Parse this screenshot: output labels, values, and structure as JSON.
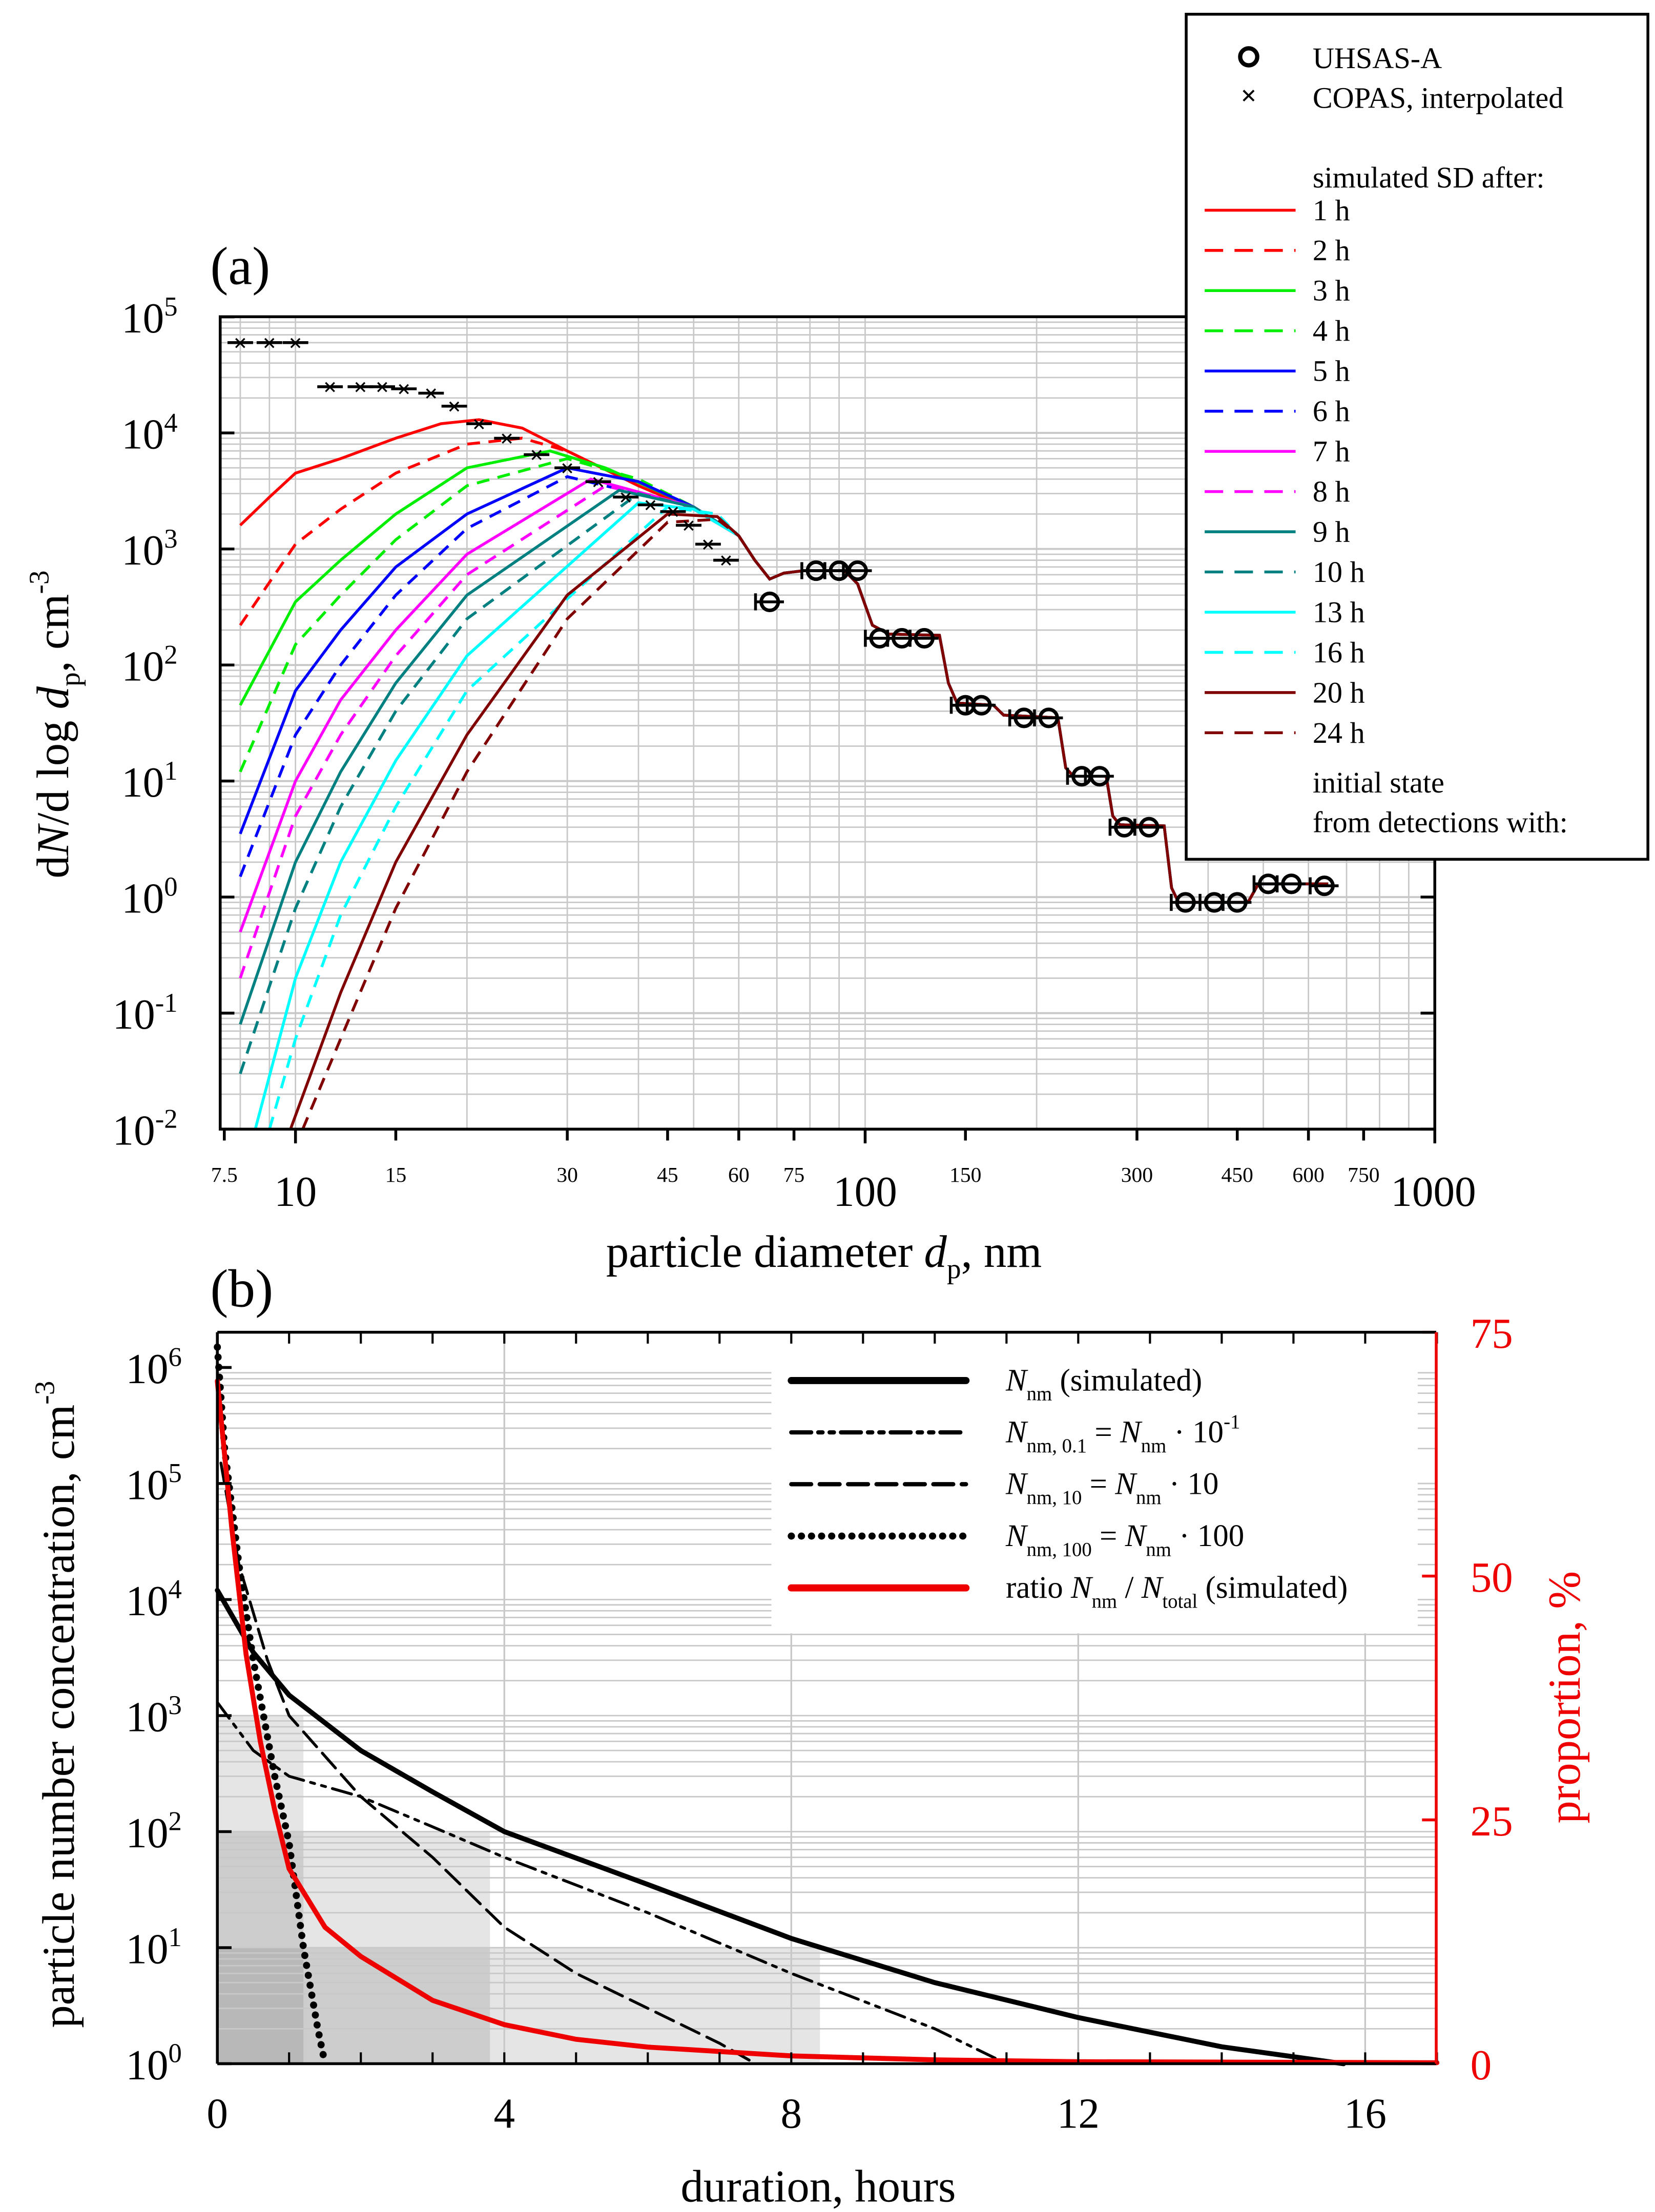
{
  "chart_data": [
    {
      "panel_label": "(a)",
      "type": "line",
      "xscale": "log",
      "yscale": "log",
      "xlim": [
        7.5,
        1000
      ],
      "ylim_exp": [
        -2,
        5
      ],
      "xlabel_pre": "particle diameter ",
      "xlabel_var": "d",
      "xlabel_sub": "p",
      "xlabel_post": ", nm",
      "ylabel": "dN/d log dp, cm-3",
      "ylabel_parts": {
        "a": "d",
        "b": "N",
        "c": "/d log ",
        "d": "d",
        "e": "p",
        "f": ", cm",
        "g": "-3"
      },
      "xticks_small": [
        "7.5",
        "15",
        "30",
        "45",
        "60",
        "75",
        "150",
        "300",
        "450",
        "600",
        "750"
      ],
      "xticks_big": [
        "10",
        "100",
        "1000"
      ],
      "yticks_exp": [
        "-2",
        "-1",
        "0",
        "1",
        "2",
        "3",
        "4",
        "5"
      ],
      "legend": {
        "uhsas": "UHSAS-A",
        "copas": "COPAS, interpolated",
        "sim_title": "simulated SD after:",
        "initial1": "initial state",
        "initial2": "from detections with:"
      },
      "series": [
        {
          "name": "1 h",
          "color": "#ff0000",
          "dash": false,
          "points": [
            [
              8,
              1600
            ],
            [
              9,
              2800
            ],
            [
              10,
              4500
            ],
            [
              12,
              6000
            ],
            [
              15,
              9000
            ],
            [
              18,
              12000
            ],
            [
              21,
              13000
            ],
            [
              25,
              11000
            ],
            [
              30,
              7000
            ],
            [
              40,
              3500
            ],
            [
              50,
              2200
            ]
          ]
        },
        {
          "name": "2 h",
          "color": "#ff0000",
          "dash": true,
          "points": [
            [
              8,
              220
            ],
            [
              10,
              1100
            ],
            [
              12,
              2200
            ],
            [
              15,
              4500
            ],
            [
              20,
              8000
            ],
            [
              25,
              9000
            ],
            [
              30,
              7000
            ],
            [
              40,
              3500
            ],
            [
              50,
              2200
            ]
          ]
        },
        {
          "name": "3 h",
          "color": "#00ee00",
          "dash": false,
          "points": [
            [
              8,
              45
            ],
            [
              10,
              350
            ],
            [
              12,
              800
            ],
            [
              15,
              2000
            ],
            [
              20,
              5000
            ],
            [
              28,
              7000
            ],
            [
              35,
              5000
            ],
            [
              50,
              2300
            ]
          ]
        },
        {
          "name": "4 h",
          "color": "#00ee00",
          "dash": true,
          "points": [
            [
              8,
              12
            ],
            [
              10,
              150
            ],
            [
              12,
              400
            ],
            [
              15,
              1200
            ],
            [
              20,
              3500
            ],
            [
              30,
              6000
            ],
            [
              40,
              4000
            ],
            [
              50,
              2300
            ]
          ]
        },
        {
          "name": "5 h",
          "color": "#0000ff",
          "dash": false,
          "points": [
            [
              8,
              3.5
            ],
            [
              10,
              60
            ],
            [
              12,
              200
            ],
            [
              15,
              700
            ],
            [
              20,
              2000
            ],
            [
              30,
              5000
            ],
            [
              40,
              3800
            ],
            [
              50,
              2300
            ]
          ]
        },
        {
          "name": "6 h",
          "color": "#0000ff",
          "dash": true,
          "points": [
            [
              8,
              1.5
            ],
            [
              10,
              25
            ],
            [
              12,
              100
            ],
            [
              15,
              400
            ],
            [
              20,
              1500
            ],
            [
              30,
              4200
            ],
            [
              50,
              2300
            ]
          ]
        },
        {
          "name": "7 h",
          "color": "#ff00ff",
          "dash": false,
          "points": [
            [
              8,
              0.5
            ],
            [
              10,
              10
            ],
            [
              12,
              50
            ],
            [
              15,
              200
            ],
            [
              20,
              900
            ],
            [
              33,
              4000
            ],
            [
              50,
              2300
            ]
          ]
        },
        {
          "name": "8 h",
          "color": "#ff00ff",
          "dash": true,
          "points": [
            [
              8,
              0.2
            ],
            [
              10,
              5
            ],
            [
              12,
              25
            ],
            [
              15,
              120
            ],
            [
              20,
              600
            ],
            [
              35,
              3500
            ],
            [
              50,
              2300
            ]
          ]
        },
        {
          "name": "9 h",
          "color": "#008080",
          "dash": false,
          "points": [
            [
              8,
              0.08
            ],
            [
              10,
              2
            ],
            [
              12,
              12
            ],
            [
              15,
              70
            ],
            [
              20,
              400
            ],
            [
              37,
              3200
            ],
            [
              50,
              2300
            ]
          ]
        },
        {
          "name": "10 h",
          "color": "#008080",
          "dash": true,
          "points": [
            [
              8,
              0.03
            ],
            [
              10,
              0.8
            ],
            [
              12,
              6
            ],
            [
              15,
              40
            ],
            [
              20,
              250
            ],
            [
              40,
              3000
            ],
            [
              50,
              2300
            ]
          ]
        },
        {
          "name": "13 h",
          "color": "#00ffff",
          "dash": false,
          "points": [
            [
              8.5,
              0.01
            ],
            [
              10,
              0.2
            ],
            [
              12,
              2
            ],
            [
              15,
              15
            ],
            [
              20,
              120
            ],
            [
              40,
              2500
            ],
            [
              50,
              2200
            ]
          ]
        },
        {
          "name": "16 h",
          "color": "#00ffff",
          "dash": true,
          "points": [
            [
              9,
              0.01
            ],
            [
              10,
              0.06
            ],
            [
              12,
              0.7
            ],
            [
              15,
              6
            ],
            [
              20,
              60
            ],
            [
              45,
              2300
            ],
            [
              55,
              2000
            ]
          ]
        },
        {
          "name": "20 h",
          "color": "#800000",
          "dash": false,
          "points": [
            [
              9.8,
              0.01
            ],
            [
              12,
              0.15
            ],
            [
              15,
              2
            ],
            [
              20,
              25
            ],
            [
              30,
              400
            ],
            [
              45,
              2000
            ],
            [
              55,
              1900
            ]
          ]
        },
        {
          "name": "24 h",
          "color": "#800000",
          "dash": true,
          "points": [
            [
              10.3,
              0.01
            ],
            [
              12,
              0.06
            ],
            [
              15,
              0.8
            ],
            [
              20,
              12
            ],
            [
              30,
              250
            ],
            [
              45,
              1700
            ],
            [
              55,
              1800
            ]
          ]
        }
      ],
      "common_tail": [
        [
          60,
          1300
        ],
        [
          64,
          800
        ],
        [
          68,
          550
        ],
        [
          72,
          620
        ],
        [
          78,
          650
        ],
        [
          92,
          650
        ],
        [
          97,
          500
        ],
        [
          103,
          220
        ],
        [
          110,
          185
        ],
        [
          135,
          180
        ],
        [
          140,
          70
        ],
        [
          145,
          47
        ],
        [
          168,
          45
        ],
        [
          175,
          37
        ],
        [
          218,
          35
        ],
        [
          225,
          13
        ],
        [
          232,
          11
        ],
        [
          265,
          11
        ],
        [
          272,
          5
        ],
        [
          280,
          4.2
        ],
        [
          335,
          4.1
        ],
        [
          345,
          1.2
        ],
        [
          355,
          0.9
        ],
        [
          470,
          0.9
        ],
        [
          490,
          1.3
        ],
        [
          650,
          1.3
        ]
      ],
      "copas_points": [
        [
          8,
          60000
        ],
        [
          9,
          60000
        ],
        [
          10,
          60000
        ],
        [
          11.5,
          25000
        ],
        [
          13,
          25000
        ],
        [
          14.2,
          25000
        ],
        [
          15.5,
          24000
        ],
        [
          17.3,
          22000
        ],
        [
          19,
          17000
        ],
        [
          21,
          12000
        ],
        [
          23.5,
          9000
        ],
        [
          26.5,
          6500
        ],
        [
          30,
          5000
        ],
        [
          34,
          3800
        ],
        [
          38,
          2800
        ],
        [
          42,
          2400
        ],
        [
          46,
          2100
        ],
        [
          49,
          1600
        ],
        [
          53,
          1100
        ],
        [
          57,
          800
        ]
      ],
      "uhsas_points": [
        [
          68,
          350
        ],
        [
          82,
          650
        ],
        [
          90,
          650
        ],
        [
          97,
          650
        ],
        [
          106,
          170
        ],
        [
          116,
          170
        ],
        [
          127,
          170
        ],
        [
          150,
          45
        ],
        [
          160,
          45
        ],
        [
          190,
          35
        ],
        [
          210,
          35
        ],
        [
          240,
          11
        ],
        [
          258,
          11
        ],
        [
          285,
          4
        ],
        [
          315,
          4
        ],
        [
          365,
          0.9
        ],
        [
          410,
          0.9
        ],
        [
          450,
          0.9
        ],
        [
          510,
          1.3
        ],
        [
          560,
          1.3
        ],
        [
          640,
          1.25
        ]
      ]
    },
    {
      "panel_label": "(b)",
      "type": "line",
      "xscale": "linear",
      "yscale": "log",
      "xlim": [
        0,
        17
      ],
      "ylim_exp": [
        0,
        6
      ],
      "y2lim": [
        0,
        75
      ],
      "xlabel": "duration, hours",
      "ylabel": "particle number concentration, cm",
      "ylabel_sup": "-3",
      "y2label": "proportion, %",
      "xticks": [
        "0",
        "4",
        "8",
        "12",
        "16"
      ],
      "yticks_exp": [
        "0",
        "1",
        "2",
        "3",
        "4",
        "5",
        "6"
      ],
      "y2ticks": [
        "0",
        "25",
        "50",
        "75"
      ],
      "shaded_regions": [
        {
          "x_end": 1.2,
          "y_top": 1000
        },
        {
          "x_end": 3.8,
          "y_top": 100
        },
        {
          "x_end": 8.4,
          "y_top": 10
        }
      ],
      "legend": [
        {
          "N": "N",
          "sub": "nm",
          "rest": " (simulated)"
        },
        {
          "N": "N",
          "sub": "nm, 0.1",
          "rest": " = ",
          "N2": "N",
          "sub2": "nm",
          "rest2": " · 10",
          "sup": "-1"
        },
        {
          "N": "N",
          "sub": "nm, 10",
          "rest": " = ",
          "N2": "N",
          "sub2": "nm",
          "rest2": " · 10"
        },
        {
          "N": "N",
          "sub": "nm, 100",
          "rest": " = ",
          "N2": "N",
          "sub2": "nm",
          "rest2": " · 100"
        },
        {
          "pre": "ratio ",
          "N": "N",
          "sub": "nm",
          "rest": " / ",
          "N2": "N",
          "sub2": "total",
          "rest2": " (simulated)"
        }
      ],
      "series": [
        {
          "name": "N_nm (simulated)",
          "color": "#000000",
          "style": "solid",
          "axis": "left",
          "points": [
            [
              0,
              12000
            ],
            [
              0.5,
              3500
            ],
            [
              1,
              1500
            ],
            [
              2,
              500
            ],
            [
              3,
              220
            ],
            [
              4,
              100
            ],
            [
              6,
              35
            ],
            [
              8,
              12
            ],
            [
              10,
              5
            ],
            [
              12,
              2.5
            ],
            [
              14,
              1.4
            ],
            [
              15.7,
              1
            ]
          ]
        },
        {
          "name": "N_nm,0.1",
          "color": "#000000",
          "style": "dashdotdot",
          "axis": "left",
          "points": [
            [
              0,
              1300
            ],
            [
              0.5,
              500
            ],
            [
              1,
              300
            ],
            [
              2,
              200
            ],
            [
              3,
              110
            ],
            [
              4,
              60
            ],
            [
              6,
              20
            ],
            [
              8,
              6
            ],
            [
              10,
              2
            ],
            [
              11,
              1
            ]
          ]
        },
        {
          "name": "N_nm,10",
          "color": "#000000",
          "style": "dashed",
          "axis": "left",
          "points": [
            [
              0.05,
              150000
            ],
            [
              0.3,
              20000
            ],
            [
              0.7,
              3000
            ],
            [
              1,
              1000
            ],
            [
              2,
              200
            ],
            [
              3,
              60
            ],
            [
              4,
              15
            ],
            [
              5,
              6
            ],
            [
              6,
              3
            ],
            [
              7,
              1.5
            ],
            [
              7.5,
              1
            ]
          ]
        },
        {
          "name": "N_nm,100",
          "color": "#000000",
          "style": "dotted",
          "axis": "left",
          "points": [
            [
              0,
              1500000
            ],
            [
              0.1,
              200000
            ],
            [
              0.3,
              20000
            ],
            [
              0.5,
              3000
            ],
            [
              0.8,
              300
            ],
            [
              1,
              80
            ],
            [
              1.2,
              10
            ],
            [
              1.4,
              2
            ],
            [
              1.5,
              1
            ]
          ]
        },
        {
          "name": "ratio N_nm/N_total (simulated)",
          "color": "#ee0000",
          "style": "solid",
          "axis": "right",
          "points": [
            [
              0,
              70
            ],
            [
              0.2,
              55
            ],
            [
              0.4,
              42
            ],
            [
              0.6,
              33
            ],
            [
              0.8,
              26
            ],
            [
              1,
              20
            ],
            [
              1.5,
              14
            ],
            [
              2,
              11
            ],
            [
              3,
              6.5
            ],
            [
              4,
              4
            ],
            [
              5,
              2.5
            ],
            [
              6,
              1.7
            ],
            [
              8,
              0.8
            ],
            [
              10,
              0.4
            ],
            [
              12,
              0.2
            ],
            [
              17,
              0.1
            ]
          ]
        }
      ]
    }
  ]
}
